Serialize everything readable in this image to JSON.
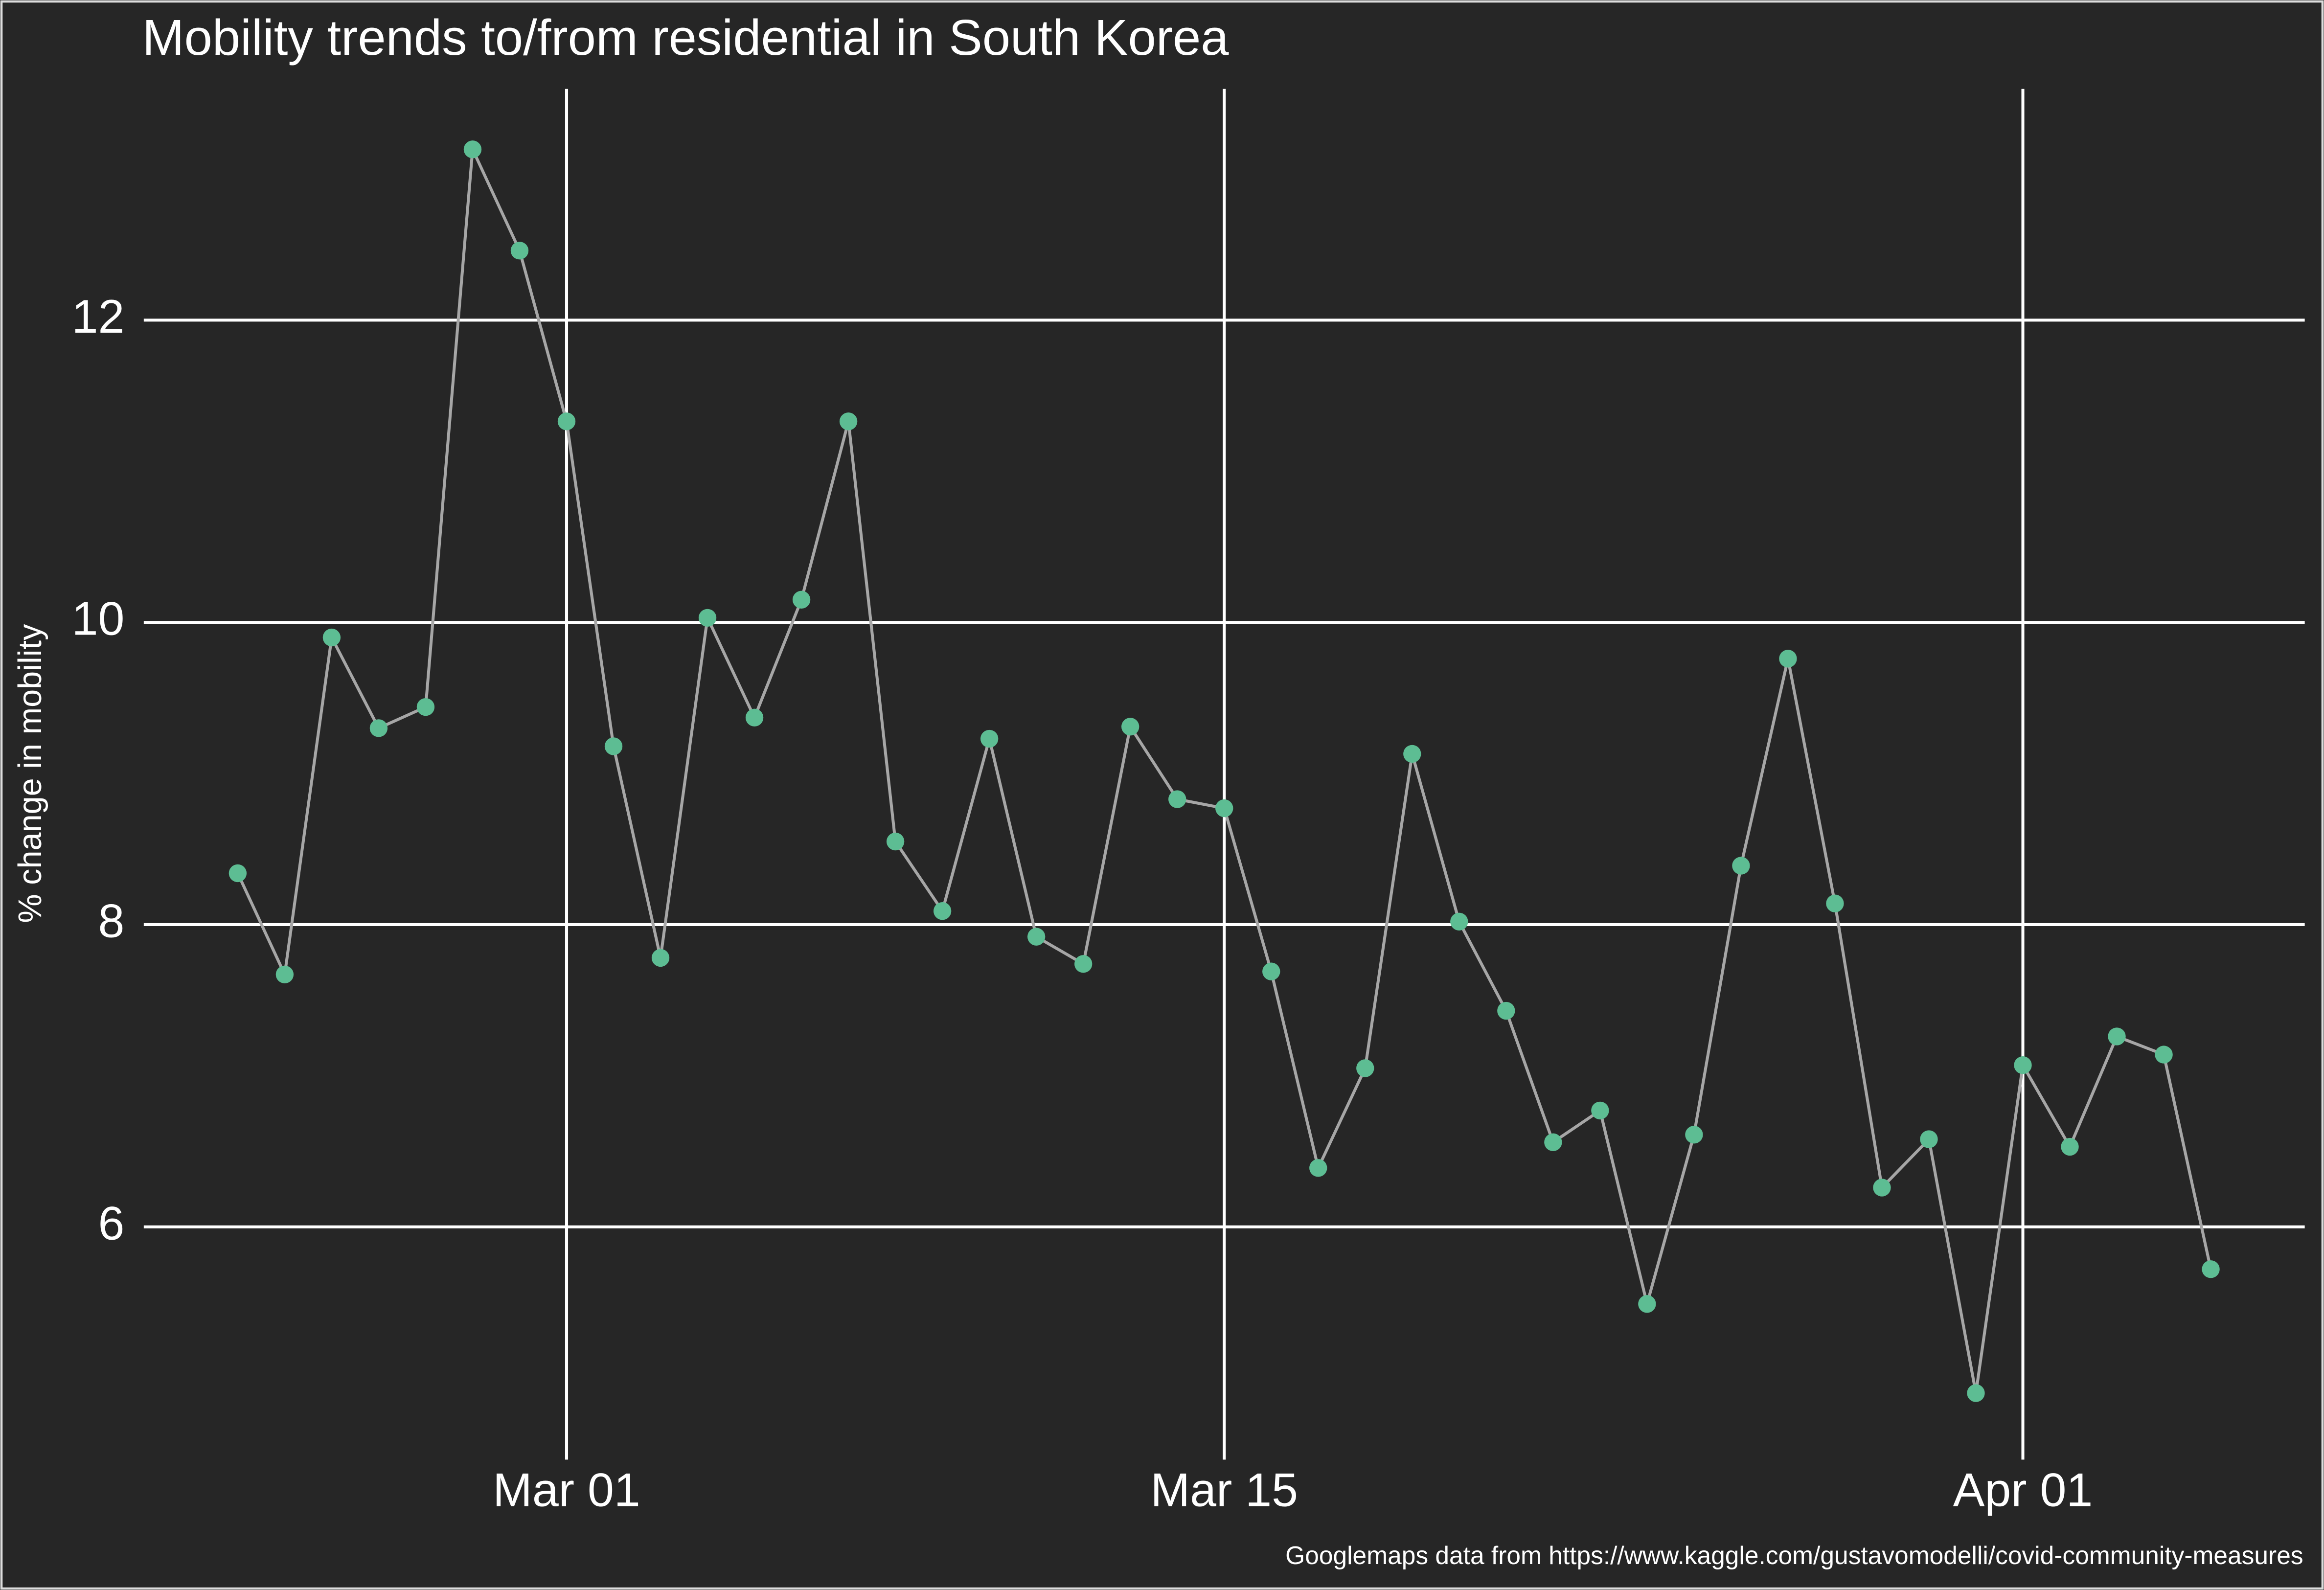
{
  "chart_data": {
    "type": "line",
    "title": "Mobility trends to/from residential in South Korea",
    "y_label": "% change in mobility",
    "caption": "Googlemaps data from https://www.kaggle.com/gustavomodelli/covid-community-measures",
    "x": [
      "02-23",
      "02-24",
      "02-25",
      "02-26",
      "02-27",
      "02-28",
      "02-29",
      "03-01",
      "03-02",
      "03-03",
      "03-04",
      "03-05",
      "03-06",
      "03-07",
      "03-08",
      "03-09",
      "03-10",
      "03-11",
      "03-12",
      "03-13",
      "03-14",
      "03-15",
      "03-16",
      "03-17",
      "03-18",
      "03-19",
      "03-20",
      "03-21",
      "03-22",
      "03-23",
      "03-24",
      "03-25",
      "03-26",
      "03-27",
      "03-28",
      "03-29",
      "03-30",
      "03-31",
      "04-01",
      "04-02",
      "04-03",
      "04-04",
      "04-05"
    ],
    "series": [
      {
        "name": "residential",
        "color": "#5dbd93",
        "line_color": "#a6a6a6",
        "values": [
          8.34,
          7.67,
          9.9,
          9.3,
          9.44,
          13.13,
          12.46,
          11.33,
          9.18,
          7.78,
          10.03,
          9.37,
          10.15,
          11.33,
          8.55,
          8.09,
          9.23,
          7.92,
          7.74,
          9.31,
          8.83,
          8.77,
          7.69,
          6.39,
          7.05,
          9.13,
          8.02,
          7.43,
          6.56,
          6.77,
          5.49,
          6.61,
          8.39,
          9.76,
          8.14,
          6.26,
          6.58,
          4.9,
          7.07,
          6.53,
          7.26,
          7.14,
          5.72
        ]
      }
    ],
    "xlim": [
      "02-21",
      "04-07"
    ],
    "ylim": [
      4.46,
      13.53
    ],
    "xticks": [
      {
        "value": "03-01",
        "label": "Mar 01"
      },
      {
        "value": "03-15",
        "label": "Mar 15"
      },
      {
        "value": "04-01",
        "label": "Apr 01"
      }
    ],
    "yticks": [
      6,
      8,
      10,
      12
    ],
    "grid": true
  }
}
